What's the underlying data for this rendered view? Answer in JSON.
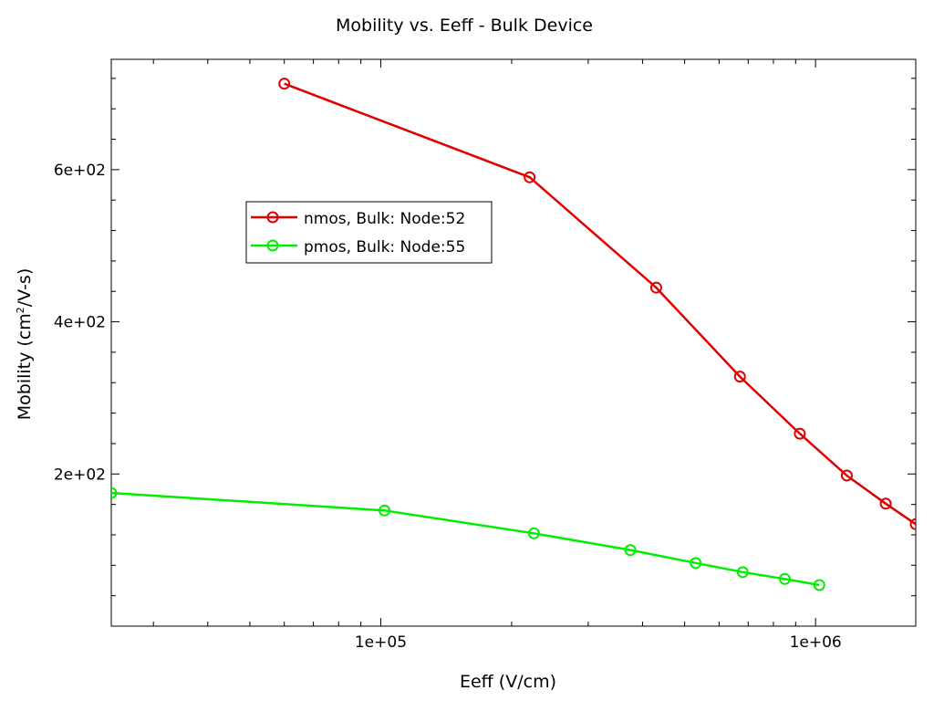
{
  "chart_data": {
    "type": "line",
    "title": "Mobility vs. Eeff - Bulk Device",
    "xlabel": "Eeff (V/cm)",
    "ylabel_main": "Mobility (cm",
    "ylabel_sup": "2",
    "ylabel_tail": "/V-s)",
    "xscale": "log",
    "xlim": [
      24000,
      1700000
    ],
    "ylim": [
      0,
      745
    ],
    "x_major_ticks": [
      {
        "value": 100000,
        "label": "1e+05"
      },
      {
        "value": 1000000,
        "label": "1e+06"
      }
    ],
    "y_major_ticks": [
      {
        "value": 200,
        "label": "2e+02"
      },
      {
        "value": 400,
        "label": "4e+02"
      },
      {
        "value": 600,
        "label": "6e+02"
      }
    ],
    "y_minor_step": 40,
    "grid": false,
    "legend_position": "upper-left",
    "series": [
      {
        "name": "nmos, Bulk: Node:52",
        "color": "#e00000",
        "x": [
          60000,
          220000,
          430000,
          670000,
          920000,
          1180000,
          1450000,
          1700000
        ],
        "y": [
          713,
          590,
          445,
          328,
          253,
          198,
          161,
          134
        ]
      },
      {
        "name": "pmos, Bulk: Node:55",
        "color": "#00ee00",
        "x": [
          24000,
          102000,
          225000,
          375000,
          530000,
          680000,
          850000,
          1020000
        ],
        "y": [
          175,
          152,
          122,
          100,
          83,
          71,
          62,
          54
        ]
      }
    ]
  }
}
